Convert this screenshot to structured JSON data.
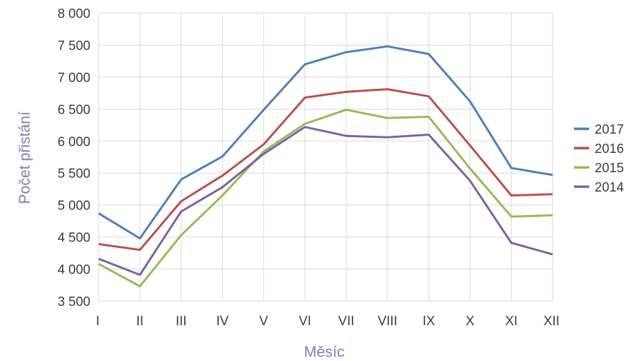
{
  "chart_data": {
    "type": "line",
    "title": "",
    "xlabel": "Měsíc",
    "ylabel": "Počet přistání",
    "categories": [
      "I",
      "II",
      "III",
      "IV",
      "V",
      "VI",
      "VII",
      "VIII",
      "IX",
      "X",
      "XI",
      "XII"
    ],
    "ylim": [
      3500,
      8000
    ],
    "yticks": [
      3500,
      4000,
      4500,
      5000,
      5500,
      6000,
      6500,
      7000,
      7500,
      8000
    ],
    "ytick_labels": [
      "3 500",
      "4 000",
      "4 500",
      "5 000",
      "5 500",
      "6 000",
      "6 500",
      "7 000",
      "7 500",
      "8 000"
    ],
    "grid": true,
    "legend_position": "right",
    "series": [
      {
        "name": "2017",
        "color": "#4a7ebb",
        "values": [
          4870,
          4480,
          5400,
          5760,
          6490,
          7200,
          7390,
          7480,
          7360,
          6620,
          5580,
          5470
        ]
      },
      {
        "name": "2016",
        "color": "#be4b48",
        "values": [
          4390,
          4300,
          5060,
          5460,
          5950,
          6680,
          6770,
          6810,
          6700,
          5930,
          5150,
          5170
        ]
      },
      {
        "name": "2015",
        "color": "#98b954",
        "values": [
          4080,
          3730,
          4530,
          5150,
          5840,
          6270,
          6490,
          6360,
          6380,
          5570,
          4820,
          4840
        ]
      },
      {
        "name": "2014",
        "color": "#7d60a0",
        "values": [
          4160,
          3910,
          4900,
          5280,
          5800,
          6220,
          6080,
          6060,
          6100,
          5380,
          4410,
          4230
        ]
      }
    ]
  }
}
